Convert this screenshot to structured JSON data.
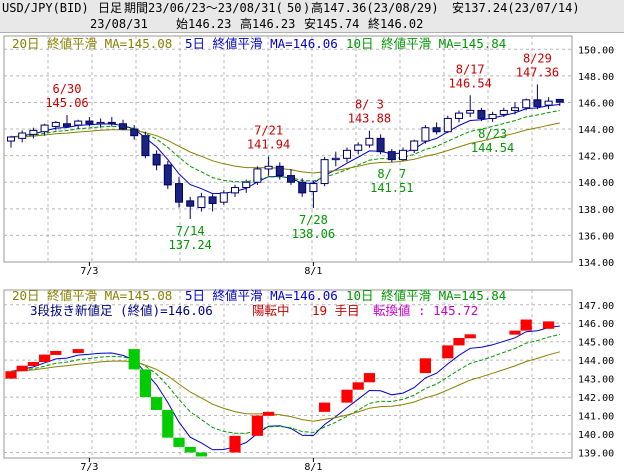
{
  "header": {
    "symbol": "USD/JPY(BID)",
    "period_type": "日足",
    "range": "期間23/06/23～23/08/31(",
    "bars": "50",
    "range_close": ")",
    "high": "高147.36(23/08/29)",
    "low": "安137.24(23/07/14)",
    "date": "23/08/31",
    "open": "始146.23",
    "high2": "高146.23",
    "low2": "安145.74",
    "close": "終146.02"
  },
  "legend_ma": {
    "ma20": "20日 終値平滑 MA=145.08",
    "ma5": "5日 終値平滑 MA=146.06",
    "ma10": "10日 終値平滑 MA=145.84",
    "ma20_color": "#8a8000",
    "ma5_color": "#0000cc",
    "ma10_color": "#009900"
  },
  "legend_break": {
    "title": "3段抜き新値足 (終値)=146.06",
    "status": "陽転中",
    "count": "19 手目",
    "reversal": "転換値 : 145.72",
    "title_color": "#000080",
    "status_color": "#cc0000",
    "reversal_color": "#cc00cc"
  },
  "chart_data": [
    {
      "type": "candlestick",
      "title": "",
      "y_ticks": [
        "150.00",
        "148.00",
        "146.00",
        "144.00",
        "142.00",
        "140.00",
        "138.00",
        "136.00",
        "134.00"
      ],
      "ylim": [
        134,
        151
      ],
      "x_labels": [
        {
          "index": 7,
          "label": "7/3"
        },
        {
          "index": 27,
          "label": "8/1"
        }
      ],
      "candles": [
        {
          "o": 143.1,
          "h": 143.5,
          "l": 142.6,
          "c": 143.4
        },
        {
          "o": 143.3,
          "h": 143.9,
          "l": 143.0,
          "c": 143.7
        },
        {
          "o": 143.6,
          "h": 144.1,
          "l": 143.3,
          "c": 143.9
        },
        {
          "o": 143.8,
          "h": 144.4,
          "l": 143.5,
          "c": 144.3
        },
        {
          "o": 144.2,
          "h": 144.6,
          "l": 143.9,
          "c": 144.5
        },
        {
          "o": 144.4,
          "h": 145.06,
          "l": 144.1,
          "c": 144.2
        },
        {
          "o": 144.3,
          "h": 144.7,
          "l": 144.0,
          "c": 144.6
        },
        {
          "o": 144.6,
          "h": 144.9,
          "l": 144.2,
          "c": 144.4
        },
        {
          "o": 144.4,
          "h": 144.8,
          "l": 144.1,
          "c": 144.5
        },
        {
          "o": 144.5,
          "h": 144.9,
          "l": 144.2,
          "c": 144.4
        },
        {
          "o": 144.4,
          "h": 144.7,
          "l": 143.9,
          "c": 144.0
        },
        {
          "o": 144.0,
          "h": 144.3,
          "l": 143.2,
          "c": 143.5
        },
        {
          "o": 143.5,
          "h": 143.8,
          "l": 141.8,
          "c": 142.0
        },
        {
          "o": 142.1,
          "h": 142.4,
          "l": 140.9,
          "c": 141.3
        },
        {
          "o": 141.3,
          "h": 141.6,
          "l": 139.5,
          "c": 139.8
        },
        {
          "o": 139.9,
          "h": 140.4,
          "l": 138.1,
          "c": 138.5
        },
        {
          "o": 138.6,
          "h": 138.9,
          "l": 137.24,
          "c": 138.2
        },
        {
          "o": 138.1,
          "h": 139.2,
          "l": 137.8,
          "c": 138.9
        },
        {
          "o": 138.9,
          "h": 139.1,
          "l": 137.8,
          "c": 138.4
        },
        {
          "o": 138.5,
          "h": 139.4,
          "l": 138.3,
          "c": 139.2
        },
        {
          "o": 139.2,
          "h": 139.8,
          "l": 138.9,
          "c": 139.6
        },
        {
          "o": 139.6,
          "h": 140.2,
          "l": 139.2,
          "c": 140.0
        },
        {
          "o": 140.0,
          "h": 141.2,
          "l": 139.8,
          "c": 141.0
        },
        {
          "o": 141.0,
          "h": 141.94,
          "l": 140.5,
          "c": 141.2
        },
        {
          "o": 141.2,
          "h": 141.5,
          "l": 140.2,
          "c": 140.5
        },
        {
          "o": 140.5,
          "h": 141.0,
          "l": 139.8,
          "c": 140.0
        },
        {
          "o": 140.0,
          "h": 140.3,
          "l": 138.9,
          "c": 139.2
        },
        {
          "o": 139.3,
          "h": 140.1,
          "l": 138.06,
          "c": 139.9
        },
        {
          "o": 139.9,
          "h": 141.9,
          "l": 139.7,
          "c": 141.7
        },
        {
          "o": 141.7,
          "h": 142.3,
          "l": 141.2,
          "c": 141.8
        },
        {
          "o": 141.8,
          "h": 142.6,
          "l": 141.5,
          "c": 142.4
        },
        {
          "o": 142.4,
          "h": 143.0,
          "l": 142.1,
          "c": 142.8
        },
        {
          "o": 142.8,
          "h": 143.88,
          "l": 142.6,
          "c": 143.3
        },
        {
          "o": 143.3,
          "h": 143.6,
          "l": 142.1,
          "c": 142.3
        },
        {
          "o": 142.3,
          "h": 142.5,
          "l": 141.51,
          "c": 141.7
        },
        {
          "o": 141.7,
          "h": 142.6,
          "l": 141.6,
          "c": 142.4
        },
        {
          "o": 142.4,
          "h": 143.2,
          "l": 142.2,
          "c": 143.1
        },
        {
          "o": 143.1,
          "h": 144.3,
          "l": 142.9,
          "c": 144.1
        },
        {
          "o": 144.1,
          "h": 144.5,
          "l": 143.6,
          "c": 143.8
        },
        {
          "o": 143.8,
          "h": 145.0,
          "l": 143.7,
          "c": 144.8
        },
        {
          "o": 144.8,
          "h": 145.4,
          "l": 144.5,
          "c": 145.2
        },
        {
          "o": 145.2,
          "h": 146.54,
          "l": 144.9,
          "c": 145.4
        },
        {
          "o": 145.4,
          "h": 145.6,
          "l": 144.6,
          "c": 144.8
        },
        {
          "o": 144.8,
          "h": 145.3,
          "l": 144.54,
          "c": 145.1
        },
        {
          "o": 145.1,
          "h": 145.6,
          "l": 144.9,
          "c": 145.4
        },
        {
          "o": 145.4,
          "h": 146.0,
          "l": 145.1,
          "c": 145.6
        },
        {
          "o": 145.6,
          "h": 146.3,
          "l": 145.4,
          "c": 146.2
        },
        {
          "o": 146.2,
          "h": 147.36,
          "l": 145.5,
          "c": 145.7
        },
        {
          "o": 145.8,
          "h": 146.4,
          "l": 145.5,
          "c": 146.1
        },
        {
          "o": 146.23,
          "h": 146.23,
          "l": 145.74,
          "c": 146.02
        }
      ],
      "annotations": [
        {
          "index": 5,
          "date": "6/30",
          "value": "145.06",
          "kind": "high"
        },
        {
          "index": 16,
          "date": "7/14",
          "value": "137.24",
          "kind": "low"
        },
        {
          "index": 23,
          "date": "7/21",
          "value": "141.94",
          "kind": "high"
        },
        {
          "index": 27,
          "date": "7/28",
          "value": "138.06",
          "kind": "low"
        },
        {
          "index": 32,
          "date": "8/ 3",
          "value": "143.88",
          "kind": "high"
        },
        {
          "index": 34,
          "date": "8/ 7",
          "value": "141.51",
          "kind": "low"
        },
        {
          "index": 41,
          "date": "8/17",
          "value": "146.54",
          "kind": "high"
        },
        {
          "index": 43,
          "date": "8/23",
          "value": "144.54",
          "kind": "low"
        },
        {
          "index": 47,
          "date": "8/29",
          "value": "147.36",
          "kind": "high"
        }
      ]
    },
    {
      "type": "three-line-break",
      "title": "",
      "y_ticks": [
        "147.00",
        "146.00",
        "145.00",
        "144.00",
        "143.00",
        "142.00",
        "141.00",
        "140.00",
        "139.00"
      ],
      "ylim": [
        138.7,
        147.8
      ],
      "x_labels": [
        {
          "index": 7,
          "label": "7/3"
        },
        {
          "index": 27,
          "label": "8/1"
        }
      ],
      "blocks": [
        {
          "dir": "up",
          "from": 143.0,
          "to": 143.4,
          "x": 0
        },
        {
          "dir": "up",
          "from": 143.4,
          "to": 143.7,
          "x": 1
        },
        {
          "dir": "up",
          "from": 143.7,
          "to": 143.9,
          "x": 2
        },
        {
          "dir": "up",
          "from": 143.9,
          "to": 144.3,
          "x": 3
        },
        {
          "dir": "up",
          "from": 144.3,
          "to": 144.5,
          "x": 4
        },
        {
          "dir": "up",
          "from": 144.5,
          "to": 144.6,
          "x": 6
        },
        {
          "dir": "down",
          "from": 144.6,
          "to": 143.5,
          "x": 11
        },
        {
          "dir": "down",
          "from": 143.5,
          "to": 142.0,
          "x": 12
        },
        {
          "dir": "down",
          "from": 142.0,
          "to": 141.3,
          "x": 13
        },
        {
          "dir": "down",
          "from": 141.3,
          "to": 139.8,
          "x": 14
        },
        {
          "dir": "down",
          "from": 139.8,
          "to": 139.3,
          "x": 15
        },
        {
          "dir": "down",
          "from": 139.3,
          "to": 139.0,
          "x": 16
        },
        {
          "dir": "down",
          "from": 139.0,
          "to": 138.85,
          "x": 17
        },
        {
          "dir": "up",
          "from": 139.0,
          "to": 139.9,
          "x": 20
        },
        {
          "dir": "up",
          "from": 139.9,
          "to": 141.0,
          "x": 22
        },
        {
          "dir": "up",
          "from": 141.0,
          "to": 141.2,
          "x": 23
        },
        {
          "dir": "up",
          "from": 141.2,
          "to": 141.7,
          "x": 28
        },
        {
          "dir": "up",
          "from": 141.7,
          "to": 142.4,
          "x": 30
        },
        {
          "dir": "up",
          "from": 142.4,
          "to": 142.8,
          "x": 31
        },
        {
          "dir": "up",
          "from": 142.8,
          "to": 143.3,
          "x": 32
        },
        {
          "dir": "up",
          "from": 143.3,
          "to": 144.1,
          "x": 37
        },
        {
          "dir": "up",
          "from": 144.1,
          "to": 144.8,
          "x": 39
        },
        {
          "dir": "up",
          "from": 144.8,
          "to": 145.2,
          "x": 40
        },
        {
          "dir": "up",
          "from": 145.2,
          "to": 145.4,
          "x": 41
        },
        {
          "dir": "up",
          "from": 145.4,
          "to": 145.6,
          "x": 45
        },
        {
          "dir": "up",
          "from": 145.6,
          "to": 146.2,
          "x": 46
        },
        {
          "dir": "up",
          "from": 145.7,
          "to": 146.1,
          "x": 48
        }
      ]
    }
  ]
}
